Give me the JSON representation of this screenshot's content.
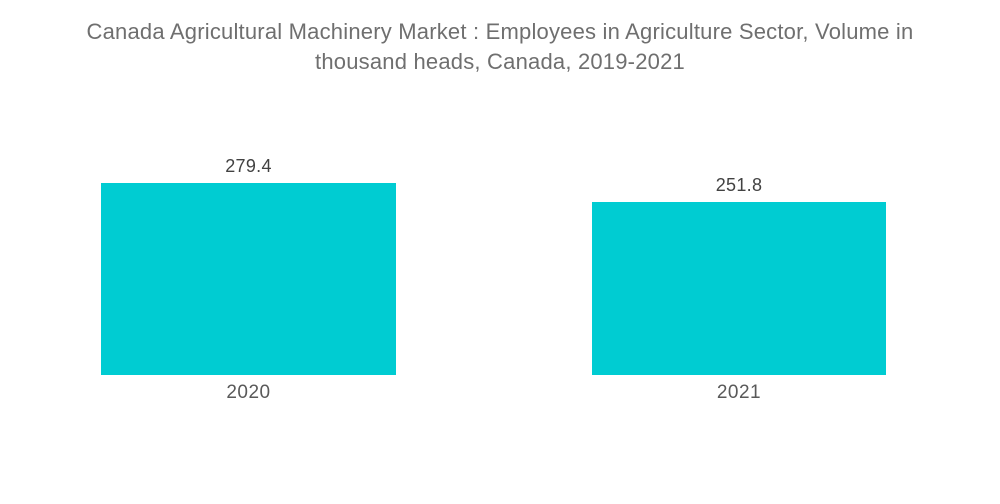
{
  "page": {
    "background": "#ffffff"
  },
  "chart_data": {
    "type": "bar",
    "title": "Canada Agricultural Machinery Market : Employees in Agriculture Sector, Volume in thousand heads, Canada, 2019-2021",
    "categories": [
      "2020",
      "2021"
    ],
    "values": [
      279.4,
      251.8
    ],
    "value_labels": [
      "279.4",
      "251.8"
    ],
    "xlabel": "",
    "ylabel": "",
    "ylim": [
      0,
      350
    ],
    "grid": false,
    "legend": "none",
    "colors": {
      "bar": "#00CCD2",
      "title_text": "#6F6F6F",
      "value_label_text": "#424242",
      "category_label_text": "#595959"
    }
  }
}
